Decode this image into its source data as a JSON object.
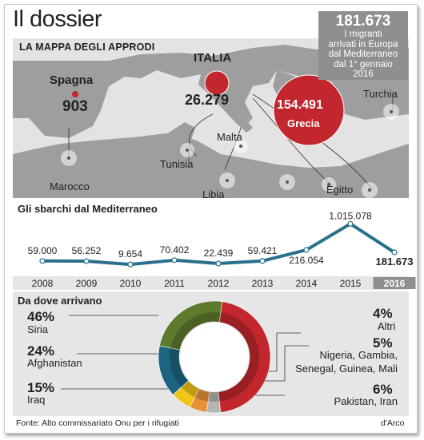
{
  "title": "Il dossier",
  "stat_box": {
    "number": "181.673",
    "lines": [
      "I migranti",
      "arrivati in Europa",
      "dal Mediterraneo",
      "dal 1° gennaio",
      "2016"
    ]
  },
  "map": {
    "heading": "LA MAPPA DEGLI APPRODI",
    "spain": {
      "name": "Spagna",
      "value": "903"
    },
    "italy": {
      "name": "ITALIA",
      "value": "26.279"
    },
    "greece": {
      "name": "Grecia",
      "value": "154.491"
    },
    "places": {
      "turchia": "Turchia",
      "malta": "Malta",
      "tunisia": "Tunisia",
      "libia": "Libia",
      "egitto": "Egitto",
      "marocco": "Marocco"
    },
    "colors": {
      "sea": "#e3e3e3",
      "land": "#9e9e9e",
      "bubble": "#c1272d"
    }
  },
  "chart_data": [
    {
      "type": "line",
      "title": "Gli sbarchi dal Mediterraneo",
      "x": [
        "2008",
        "2009",
        "2010",
        "2011",
        "2012",
        "2013",
        "2014",
        "2015",
        "2016"
      ],
      "y": [
        59000,
        56252,
        9654,
        70402,
        22439,
        59421,
        216054,
        1015078,
        181673
      ],
      "labels": [
        "59.000",
        "56.252",
        "9.654",
        "70.402",
        "22.439",
        "59.421",
        "216.054",
        "1.015.078",
        "181.673"
      ],
      "ylim": [
        0,
        1100000
      ],
      "color": "#2a6f8c",
      "highlight_year": "2016"
    },
    {
      "type": "pie",
      "title": "Da dove arrivano",
      "slices": [
        {
          "label": "Siria",
          "pct_label": "46%",
          "value": 46,
          "color": "#c1272d"
        },
        {
          "label": "Afghanistan",
          "pct_label": "24%",
          "value": 24,
          "color": "#5e7a2e"
        },
        {
          "label": "Iraq",
          "pct_label": "15%",
          "value": 15,
          "color": "#1c6480"
        },
        {
          "label": "Pakistan, Iran",
          "pct_label": "6%",
          "value": 6,
          "color": "#f0c419"
        },
        {
          "label": "Nigeria, Gambia, Senegal, Guinea, Mali",
          "pct_label": "5%",
          "value": 5,
          "color": "#e8913a"
        },
        {
          "label": "Altri",
          "pct_label": "4%",
          "value": 4,
          "color": "#b5b5b5"
        }
      ]
    }
  ],
  "donut_labels": {
    "siria": {
      "pct": "46%",
      "name": "Siria"
    },
    "afghanistan": {
      "pct": "24%",
      "name": "Afghanistan"
    },
    "iraq": {
      "pct": "15%",
      "name": "Iraq"
    },
    "altri": {
      "pct": "4%",
      "name": "Altri"
    },
    "africa": {
      "pct": "5%",
      "line1": "Nigeria, Gambia,",
      "line2": "Senegal, Guinea, Mali"
    },
    "pakistan": {
      "pct": "6%",
      "name": "Pakistan, Iran"
    }
  },
  "footer": {
    "source": "Fonte: Alto commissariato Onu per i rifugiati",
    "credit": "d'Arco"
  }
}
